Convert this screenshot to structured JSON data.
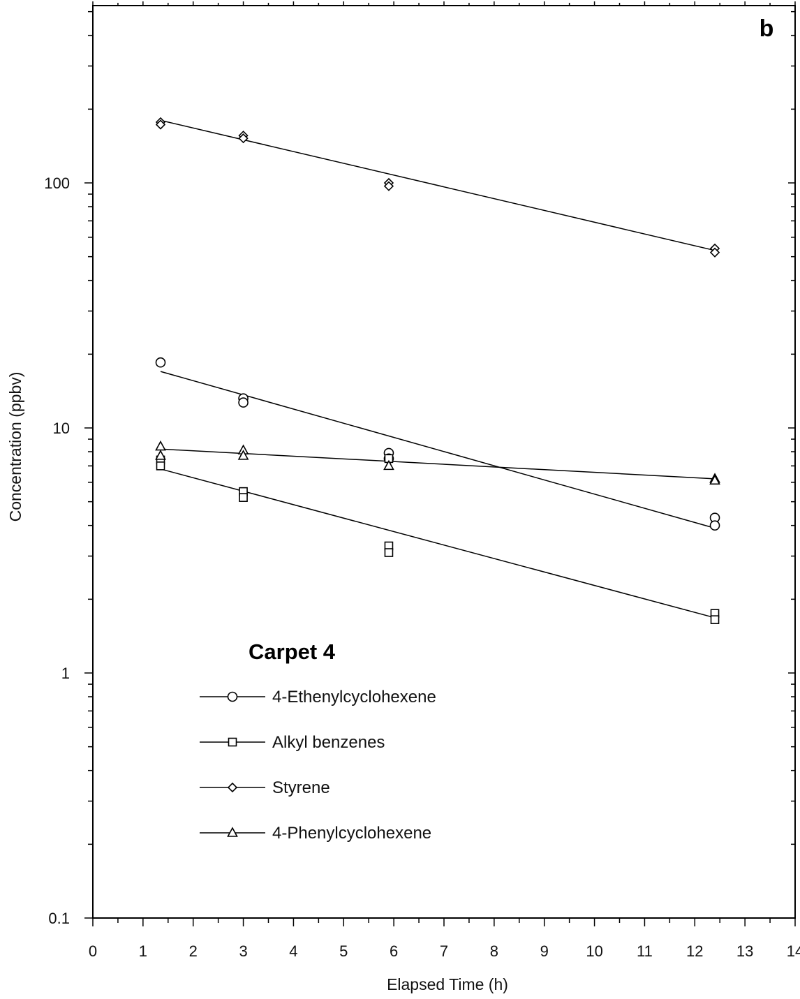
{
  "chart_data": {
    "type": "scatter",
    "panel_label": "b",
    "xlabel": "Elapsed Time (h)",
    "ylabel": "Concentration (ppbv)",
    "xlim": [
      0,
      14
    ],
    "ylim": [
      0.1,
      500
    ],
    "y_scale": "log",
    "x_ticks": [
      "0",
      "1",
      "2",
      "3",
      "4",
      "5",
      "6",
      "7",
      "8",
      "9",
      "10",
      "11",
      "12",
      "13",
      "14"
    ],
    "y_ticks": [
      "0.1",
      "1",
      "10",
      "100"
    ],
    "y_tick_values": [
      0.1,
      1,
      10,
      100
    ],
    "legend": {
      "title": "Carpet  4",
      "placement": "lower-left"
    },
    "series": [
      {
        "name": "4-Ethenylcyclohexene",
        "marker": "circle",
        "points": [
          [
            1.35,
            18.5
          ],
          [
            3.0,
            13.2
          ],
          [
            3.0,
            12.7
          ],
          [
            5.9,
            7.9
          ],
          [
            5.9,
            7.5
          ],
          [
            12.4,
            4.3
          ],
          [
            12.4,
            4.0
          ]
        ],
        "fit": [
          [
            1.35,
            17.0
          ],
          [
            12.4,
            3.9
          ]
        ]
      },
      {
        "name": "Alkyl benzenes",
        "marker": "square",
        "points": [
          [
            1.35,
            7.4
          ],
          [
            1.35,
            7.0
          ],
          [
            3.0,
            5.5
          ],
          [
            3.0,
            5.2
          ],
          [
            5.9,
            7.5
          ],
          [
            5.9,
            3.3
          ],
          [
            5.9,
            3.1
          ],
          [
            12.4,
            1.75
          ],
          [
            12.4,
            1.65
          ]
        ],
        "fit": [
          [
            1.35,
            6.8
          ],
          [
            12.4,
            1.68
          ]
        ]
      },
      {
        "name": "Styrene",
        "marker": "diamond",
        "points": [
          [
            1.35,
            177
          ],
          [
            1.35,
            173
          ],
          [
            3.0,
            156
          ],
          [
            3.0,
            152
          ],
          [
            5.9,
            100
          ],
          [
            5.9,
            97
          ],
          [
            12.4,
            54
          ],
          [
            12.4,
            52
          ]
        ],
        "fit": [
          [
            1.35,
            180
          ],
          [
            12.4,
            53
          ]
        ]
      },
      {
        "name": "4-Phenylcyclohexene",
        "marker": "triangle",
        "points": [
          [
            1.35,
            8.4
          ],
          [
            1.35,
            7.7
          ],
          [
            3.0,
            8.1
          ],
          [
            3.0,
            7.7
          ],
          [
            5.9,
            7.0
          ],
          [
            12.4,
            6.2
          ],
          [
            12.4,
            6.1
          ]
        ],
        "fit": [
          [
            1.35,
            8.2
          ],
          [
            12.4,
            6.2
          ]
        ]
      }
    ]
  }
}
